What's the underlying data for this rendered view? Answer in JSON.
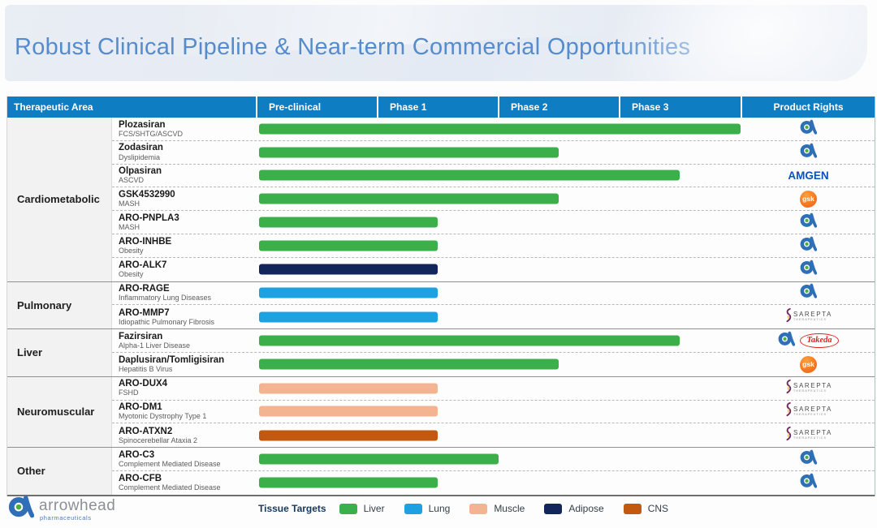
{
  "slide": {
    "title": "Robust Clinical Pipeline & Near-term Commercial Opportunities"
  },
  "colors": {
    "header_blue": "#0f7dc2",
    "title_blue": "#548ccd",
    "liver": "#3bb04a",
    "lung": "#1da1e0",
    "muscle": "#f3b591",
    "adipose": "#13265c",
    "cns": "#c15a10"
  },
  "table": {
    "headers": [
      "Therapeutic Area",
      "Pre-clinical",
      "Phase 1",
      "Phase 2",
      "Phase 3",
      "Product Rights"
    ],
    "sections": [
      {
        "area": "Cardiometabolic",
        "drugs": [
          {
            "name": "Plozasiran",
            "indication": "FCS/SHTG/ASCVD",
            "tissue": "liver",
            "progress": 4.0,
            "rights": [
              "arrowhead"
            ]
          },
          {
            "name": "Zodasiran",
            "indication": "Dyslipidemia",
            "tissue": "liver",
            "progress": 2.5,
            "rights": [
              "arrowhead"
            ]
          },
          {
            "name": "Olpasiran",
            "indication": "ASCVD",
            "tissue": "liver",
            "progress": 3.5,
            "rights": [
              "amgen"
            ]
          },
          {
            "name": "GSK4532990",
            "indication": "MASH",
            "tissue": "liver",
            "progress": 2.5,
            "rights": [
              "gsk"
            ]
          },
          {
            "name": "ARO-PNPLA3",
            "indication": "MASH",
            "tissue": "liver",
            "progress": 1.5,
            "rights": [
              "arrowhead"
            ]
          },
          {
            "name": "ARO-INHBE",
            "indication": "Obesity",
            "tissue": "liver",
            "progress": 1.5,
            "rights": [
              "arrowhead"
            ]
          },
          {
            "name": "ARO-ALK7",
            "indication": "Obesity",
            "tissue": "adipose",
            "progress": 1.5,
            "rights": [
              "arrowhead"
            ]
          }
        ]
      },
      {
        "area": "Pulmonary",
        "drugs": [
          {
            "name": "ARO-RAGE",
            "indication": "Inflammatory Lung Diseases",
            "tissue": "lung",
            "progress": 1.5,
            "rights": [
              "arrowhead"
            ]
          },
          {
            "name": "ARO-MMP7",
            "indication": "Idiopathic Pulmonary Fibrosis",
            "tissue": "lung",
            "progress": 1.5,
            "rights": [
              "sarepta"
            ]
          }
        ]
      },
      {
        "area": "Liver",
        "drugs": [
          {
            "name": "Fazirsiran",
            "indication": "Alpha-1 Liver Disease",
            "tissue": "liver",
            "progress": 3.5,
            "rights": [
              "arrowhead",
              "takeda"
            ]
          },
          {
            "name": "Daplusiran/Tomligisiran",
            "indication": "Hepatitis B Virus",
            "tissue": "liver",
            "progress": 2.5,
            "rights": [
              "gsk"
            ]
          }
        ]
      },
      {
        "area": "Neuromuscular",
        "drugs": [
          {
            "name": "ARO-DUX4",
            "indication": "FSHD",
            "tissue": "muscle",
            "progress": 1.5,
            "rights": [
              "sarepta"
            ]
          },
          {
            "name": "ARO-DM1",
            "indication": "Myotonic Dystrophy Type 1",
            "tissue": "muscle",
            "progress": 1.5,
            "rights": [
              "sarepta"
            ]
          },
          {
            "name": "ARO-ATXN2",
            "indication": "Spinocerebellar Ataxia 2",
            "tissue": "cns",
            "progress": 1.5,
            "rights": [
              "sarepta"
            ]
          }
        ]
      },
      {
        "area": "Other",
        "drugs": [
          {
            "name": "ARO-C3",
            "indication": "Complement Mediated Disease",
            "tissue": "liver",
            "progress": 2.0,
            "rights": [
              "arrowhead"
            ]
          },
          {
            "name": "ARO-CFB",
            "indication": "Complement Mediated Disease",
            "tissue": "liver",
            "progress": 1.5,
            "rights": [
              "arrowhead"
            ]
          }
        ]
      }
    ]
  },
  "logos": {
    "amgen_text": "AMGEN",
    "gsk_text": "gsk",
    "takeda_text": "Takeda",
    "sarepta_text": "SAREPTA",
    "sarepta_sub": "THERAPEUTICS"
  },
  "legend": {
    "label": "Tissue Targets",
    "items": [
      {
        "label": "Liver",
        "tissue": "liver"
      },
      {
        "label": "Lung",
        "tissue": "lung"
      },
      {
        "label": "Muscle",
        "tissue": "muscle"
      },
      {
        "label": "Adipose",
        "tissue": "adipose"
      },
      {
        "label": "CNS",
        "tissue": "cns"
      }
    ]
  },
  "footer": {
    "logo_name": "arrowhead",
    "logo_sub": "pharmaceuticals"
  },
  "chart_data": {
    "type": "bar",
    "orientation": "horizontal",
    "title": "Robust Clinical Pipeline & Near-term Commercial Opportunities",
    "x_stages": [
      "Pre-clinical",
      "Phase 1",
      "Phase 2",
      "Phase 3"
    ],
    "progress_scale": "0=start of pre-clinical, 1=end pre-clinical, 2=end phase 1, 3=end phase 2, 4=end phase 3",
    "categories": [
      "Plozasiran",
      "Zodasiran",
      "Olpasiran",
      "GSK4532990",
      "ARO-PNPLA3",
      "ARO-INHBE",
      "ARO-ALK7",
      "ARO-RAGE",
      "ARO-MMP7",
      "Fazirsiran",
      "Daplusiran/Tomligisiran",
      "ARO-DUX4",
      "ARO-DM1",
      "ARO-ATXN2",
      "ARO-C3",
      "ARO-CFB"
    ],
    "values": [
      4.0,
      2.5,
      3.5,
      2.5,
      1.5,
      1.5,
      1.5,
      1.5,
      1.5,
      3.5,
      2.5,
      1.5,
      1.5,
      1.5,
      2.0,
      1.5
    ],
    "bar_color_groups": [
      "liver",
      "liver",
      "liver",
      "liver",
      "liver",
      "liver",
      "adipose",
      "lung",
      "lung",
      "liver",
      "liver",
      "muscle",
      "muscle",
      "cns",
      "liver",
      "liver"
    ],
    "legend_position": "bottom",
    "grid": false,
    "xlim": [
      0,
      4
    ]
  }
}
